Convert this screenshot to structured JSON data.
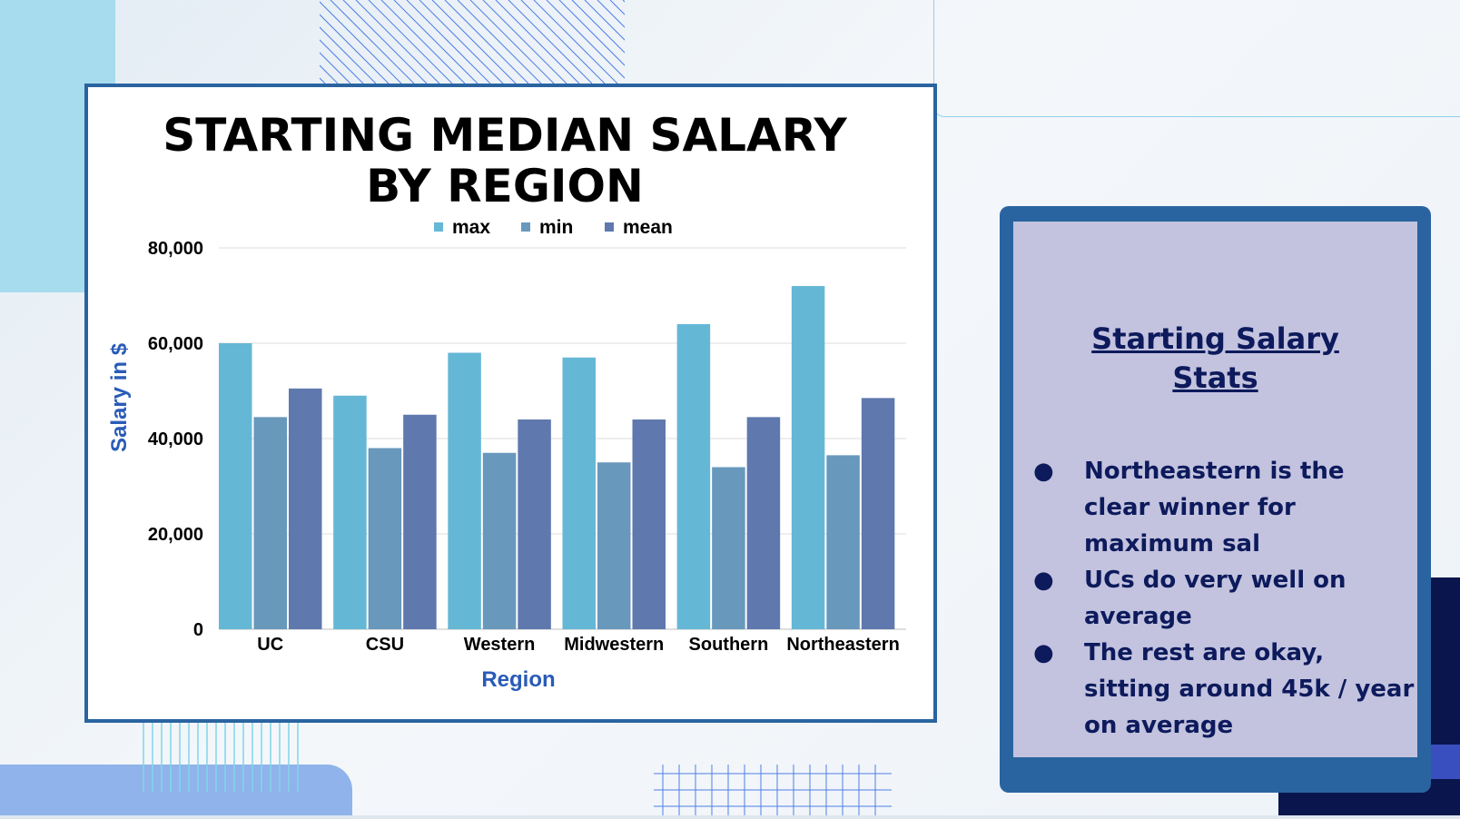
{
  "chart_data": {
    "type": "bar",
    "title_lines": [
      "STARTING MEDIAN SALARY",
      "BY REGION"
    ],
    "xlabel": "Region",
    "ylabel": "Salary in $",
    "categories": [
      "UC",
      "CSU",
      "Western",
      "Midwestern",
      "Southern",
      "Northeastern"
    ],
    "series": [
      {
        "name": "max",
        "color": "#65b7d6",
        "values": [
          60000,
          49000,
          58000,
          57000,
          64000,
          72000
        ]
      },
      {
        "name": "min",
        "color": "#6898bc",
        "values": [
          44500,
          38000,
          37000,
          35000,
          34000,
          36500
        ]
      },
      {
        "name": "mean",
        "color": "#5f78ae",
        "values": [
          50500,
          45000,
          44000,
          44000,
          44500,
          48500
        ]
      }
    ],
    "ylim": [
      0,
      80000
    ],
    "yticks": [
      0,
      20000,
      40000,
      60000,
      80000
    ],
    "ytick_labels": [
      "0",
      "20,000",
      "40,000",
      "60,000",
      "80,000"
    ],
    "grid": true,
    "legend_position": "top-center"
  },
  "stats": {
    "title_lines": [
      "Starting Salary",
      "Stats"
    ],
    "bullet_symbol": "●",
    "bullets": [
      "Northeastern is the clear winner for maximum sal",
      "UCs do very well on average",
      "The rest are okay, sitting around 45k / year on average"
    ]
  }
}
